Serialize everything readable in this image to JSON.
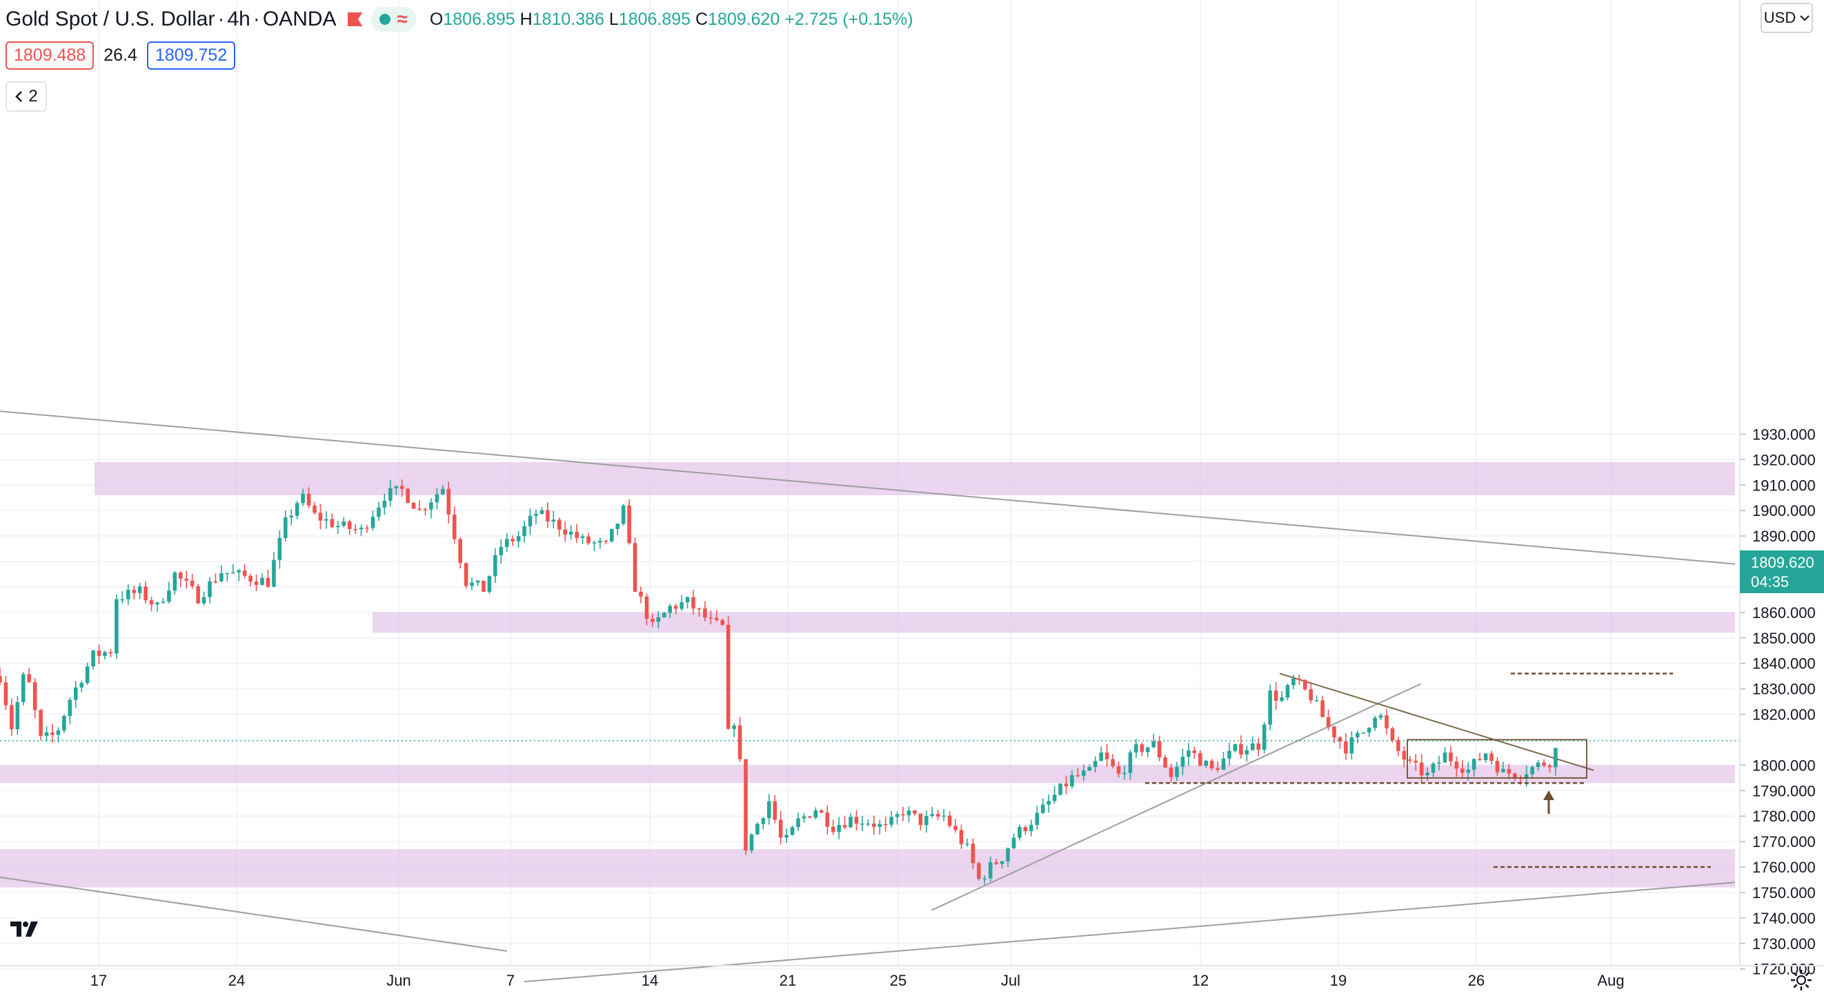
{
  "header": {
    "symbol": "Gold Spot / U.S. Dollar",
    "separator": "·",
    "interval": "4h",
    "broker": "OANDA",
    "open_label": "O",
    "open": "1806.895",
    "high_label": "H",
    "high": "1810.386",
    "low_label": "L",
    "low": "1806.895",
    "close_label": "C",
    "close": "1809.620",
    "change": "+2.725 (+0.15%)",
    "live_icon": "dot-icon",
    "wave_icon": "wave-icon"
  },
  "quote": {
    "sell": "1809.488",
    "spread": "26.4",
    "buy": "1809.752"
  },
  "indicators": {
    "count": "2",
    "icon": "chevron-left-icon"
  },
  "currency": {
    "label": "USD",
    "icon": "chevron-down-icon"
  },
  "current_price": {
    "value": "1809.620",
    "countdown": "04:35"
  },
  "colors": {
    "up": "#26a69a",
    "down": "#ef5350",
    "zone": "#e1bee7",
    "trend": "#9e9e9e",
    "brown": "#6d4c2e"
  },
  "chart_data": {
    "type": "candlestick",
    "x_ticks": [
      "17",
      "24",
      "Jun",
      "7",
      "14",
      "21",
      "25",
      "Jul",
      "12",
      "19",
      "26",
      "Aug"
    ],
    "y_ticks": [
      "1930.000",
      "1920.000",
      "1910.000",
      "1900.000",
      "1890.000",
      "1880.000",
      "1870.000",
      "1860.000",
      "1850.000",
      "1840.000",
      "1830.000",
      "1820.000",
      "1800.000",
      "1790.000",
      "1780.000",
      "1770.000",
      "1760.000",
      "1750.000",
      "1740.000",
      "1730.000",
      "1720.000"
    ],
    "ylim": [
      1716,
      1947
    ],
    "price_path": [
      [
        0,
        1835
      ],
      [
        10,
        1815
      ],
      [
        22,
        1838
      ],
      [
        35,
        1810
      ],
      [
        48,
        1812
      ],
      [
        60,
        1826
      ],
      [
        80,
        1843
      ],
      [
        95,
        1845
      ],
      [
        100,
        1866
      ],
      [
        120,
        1868
      ],
      [
        135,
        1862
      ],
      [
        150,
        1875
      ],
      [
        170,
        1866
      ],
      [
        190,
        1876
      ],
      [
        210,
        1874
      ],
      [
        230,
        1872
      ],
      [
        245,
        1895
      ],
      [
        258,
        1906
      ],
      [
        270,
        1898
      ],
      [
        290,
        1894
      ],
      [
        310,
        1892
      ],
      [
        330,
        1906
      ],
      [
        345,
        1908
      ],
      [
        360,
        1900
      ],
      [
        380,
        1909
      ],
      [
        400,
        1872
      ],
      [
        415,
        1869
      ],
      [
        430,
        1886
      ],
      [
        445,
        1890
      ],
      [
        460,
        1899
      ],
      [
        480,
        1894
      ],
      [
        500,
        1888
      ],
      [
        520,
        1886
      ],
      [
        535,
        1900
      ],
      [
        545,
        1870
      ],
      [
        560,
        1854
      ],
      [
        575,
        1862
      ],
      [
        590,
        1864
      ],
      [
        610,
        1856
      ],
      [
        620,
        1854
      ],
      [
        625,
        1812
      ],
      [
        632,
        1820
      ],
      [
        640,
        1768
      ],
      [
        650,
        1777
      ],
      [
        660,
        1786
      ],
      [
        672,
        1768
      ],
      [
        685,
        1778
      ],
      [
        700,
        1783
      ],
      [
        715,
        1776
      ],
      [
        730,
        1779
      ],
      [
        745,
        1778
      ],
      [
        760,
        1775
      ],
      [
        775,
        1782
      ],
      [
        790,
        1778
      ],
      [
        810,
        1780
      ],
      [
        830,
        1767
      ],
      [
        840,
        1755
      ],
      [
        850,
        1760
      ],
      [
        860,
        1764
      ],
      [
        870,
        1772
      ],
      [
        890,
        1780
      ],
      [
        905,
        1788
      ],
      [
        920,
        1795
      ],
      [
        935,
        1797
      ],
      [
        945,
        1804
      ],
      [
        960,
        1796
      ],
      [
        975,
        1806
      ],
      [
        990,
        1808
      ],
      [
        1005,
        1796
      ],
      [
        1020,
        1806
      ],
      [
        1040,
        1798
      ],
      [
        1060,
        1806
      ],
      [
        1080,
        1808
      ],
      [
        1090,
        1828
      ],
      [
        1100,
        1826
      ],
      [
        1110,
        1833
      ],
      [
        1125,
        1827
      ],
      [
        1140,
        1815
      ],
      [
        1155,
        1807
      ],
      [
        1170,
        1813
      ],
      [
        1182,
        1822
      ],
      [
        1195,
        1808
      ],
      [
        1210,
        1800
      ],
      [
        1225,
        1796
      ],
      [
        1240,
        1804
      ],
      [
        1260,
        1798
      ],
      [
        1275,
        1805
      ],
      [
        1290,
        1797
      ],
      [
        1305,
        1797
      ],
      [
        1320,
        1800
      ],
      [
        1332,
        1802
      ],
      [
        1338,
        1810
      ]
    ],
    "zones": [
      [
        1906,
        1919
      ],
      [
        1852,
        1860
      ],
      [
        1793,
        1800
      ],
      [
        1752,
        1767
      ]
    ],
    "trendlines": [
      {
        "from": [
          0,
          1939
        ],
        "to": [
          2515,
          1879
        ]
      },
      {
        "from": [
          0,
          1756
        ],
        "to": [
          735,
          1727
        ]
      },
      {
        "from": [
          760,
          1715
        ],
        "to": [
          2515,
          1754
        ]
      },
      {
        "from": [
          1350,
          1743
        ],
        "to": [
          2060,
          1832
        ]
      },
      {
        "from": [
          1855,
          1836
        ],
        "to": [
          2310,
          1798
        ]
      }
    ],
    "dashed_levels": [
      {
        "from": 1660,
        "to": 2300,
        "y": 1793
      },
      {
        "from": 2190,
        "to": 2425,
        "y": 1836
      },
      {
        "from": 2165,
        "to": 2480,
        "y": 1760
      }
    ],
    "consolidation_box": [
      [
        2040,
        1810
      ],
      [
        2300,
        1795
      ]
    ],
    "arrow": {
      "x": 2245,
      "y": 1789
    },
    "current_line": 1809.62
  }
}
